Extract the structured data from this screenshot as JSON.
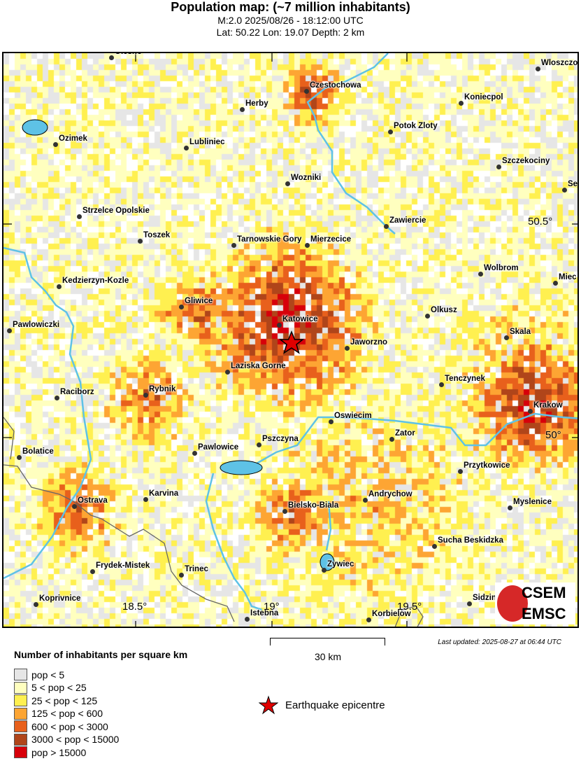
{
  "header": {
    "title": "Population map: (~7 million inhabitants)",
    "line2": "M:2.0 2025/08/26 - 18:12:00 UTC",
    "line3": "Lat: 50.22 Lon: 19.07 Depth: 2 km"
  },
  "map": {
    "lat_ticks": [
      "50.5°",
      "50°"
    ],
    "lon_ticks": [
      "18.5°",
      "19°",
      "19.5°"
    ],
    "cities": [
      "Olesno",
      "Czestochowa",
      "Wloszczo",
      "Koniecpol",
      "Herby",
      "Ozimek",
      "Lubliniec",
      "Potok Zloty",
      "Szczekociny",
      "Wozniki",
      "Sec",
      "Strzelce Opolskie",
      "Zawiercie",
      "Toszek",
      "Tarnowskie Gory",
      "Mierzecice",
      "Wolbrom",
      "Miec",
      "Kedzierzyn-Kozle",
      "Gliwice",
      "Olkusz",
      "Katowice",
      "Pawlowiczki",
      "Skala",
      "Jaworzno",
      "Laziska Gorne",
      "Tenczynek",
      "Raciborz",
      "Rybnik",
      "Krakow",
      "Oswiecim",
      "Zator",
      "Pszczyna",
      "Pawlowice",
      "Bolatice",
      "Przytkowice",
      "Andrychow",
      "Karvina",
      "Ostrava",
      "Myslenice",
      "Bielsko-Biala",
      "Sucha Beskidzka",
      "Frydek-Mistek",
      "Trinec",
      "Zywiec",
      "Koprivnice",
      "Sidzin",
      "Istebna",
      "Korbielow"
    ],
    "epicenter": {
      "lat": 50.22,
      "lon": 19.07
    },
    "logo": {
      "top": "CSEM",
      "bottom": "EMSC"
    }
  },
  "scale_label": "30 km",
  "last_updated": "Last updated: 2025-08-27 at 06:44 UTC",
  "legend": {
    "title": "Number of inhabitants per square km",
    "items": [
      {
        "label": "pop < 5",
        "color": "#e6e6e6"
      },
      {
        "label": "5 < pop < 25",
        "color": "#ffffbf"
      },
      {
        "label": "25 < pop < 125",
        "color": "#fff050"
      },
      {
        "label": "125 < pop < 600",
        "color": "#fda533"
      },
      {
        "label": "600 < pop < 3000",
        "color": "#e8601c"
      },
      {
        "label": "3000 < pop < 15000",
        "color": "#b0451a"
      },
      {
        "label": "pop > 15000",
        "color": "#d7000a"
      }
    ],
    "epicentre_label": "Earthquake epicentre"
  }
}
